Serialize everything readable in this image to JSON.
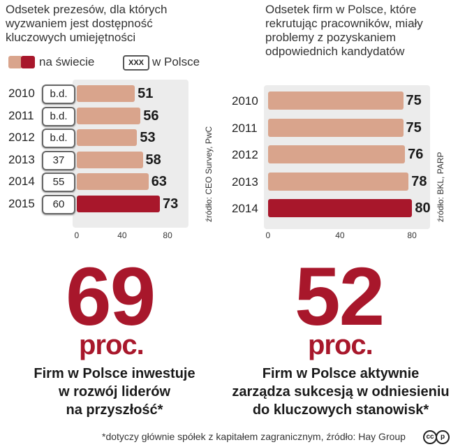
{
  "left": {
    "title_lines": [
      "Odsetek prezesów, dla których",
      "wyzwaniem jest dostępność",
      "kluczowych umiejętności"
    ],
    "legend": {
      "world_label": "na świecie",
      "poland_box": "XXX",
      "poland_label": "w Polsce"
    },
    "source": "źródło: CEO Survey, PwC"
  },
  "right": {
    "title_lines": [
      "Odsetek firm w Polsce, które",
      "rekrutując pracowników, miały",
      "problemy z pozyskaniem",
      "odpowiednich kandydatów"
    ],
    "source": "źródło: BKL, PARP"
  },
  "chart_data": [
    {
      "type": "bar",
      "orientation": "horizontal",
      "categories": [
        "2010",
        "2011",
        "2012",
        "2013",
        "2014",
        "2015"
      ],
      "series": [
        {
          "name": "na świecie",
          "values": [
            51,
            56,
            53,
            58,
            63,
            73
          ]
        },
        {
          "name": "w Polsce",
          "values": [
            "b.d.",
            "b.d.",
            "b.d.",
            37,
            55,
            60
          ]
        }
      ],
      "highlight_category": "2015",
      "xlim": [
        0,
        80
      ],
      "xticks": [
        "0",
        "40",
        "80"
      ]
    },
    {
      "type": "bar",
      "orientation": "horizontal",
      "categories": [
        "2010",
        "2011",
        "2012",
        "2013",
        "2014"
      ],
      "series": [
        {
          "values": [
            75,
            75,
            76,
            78,
            80
          ]
        }
      ],
      "highlight_category": "2014",
      "xlim": [
        0,
        80
      ],
      "xticks": [
        "0",
        "40",
        "80"
      ]
    }
  ],
  "stats": [
    {
      "number": "69",
      "unit": "proc.",
      "desc_lines": [
        "Firm w Polsce inwestuje",
        "w rozwój liderów",
        "na przyszłość*"
      ]
    },
    {
      "number": "52",
      "unit": "proc.",
      "desc_lines": [
        "Firm w Polsce aktywnie",
        "zarządza sukcesją w odniesieniu",
        "do kluczowych stanowisk*"
      ]
    }
  ],
  "footnote": "*dotyczy głównie spółek z kapitałem zagranicznym, źródło: Hay Group",
  "license_icons": [
    "cc",
    "p"
  ],
  "colors": {
    "accent": "#a8172b",
    "bar_light": "#d9a48c",
    "panel_bg": "#ececec"
  }
}
